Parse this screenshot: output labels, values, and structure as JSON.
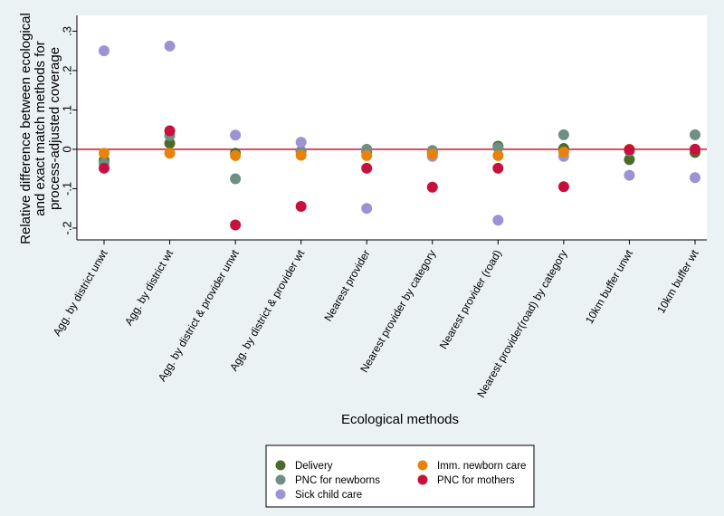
{
  "chart_data": {
    "type": "scatter",
    "xlabel": "Ecological methods",
    "ylabel_lines": [
      "Relative difference between ecological",
      "and exact match methods for",
      "process-adjusted coverage"
    ],
    "ylim": [
      -0.23,
      0.34
    ],
    "yticks": [
      -0.2,
      -0.1,
      0,
      0.1,
      0.2,
      0.3
    ],
    "ytick_labels": [
      "-.2",
      "-.1",
      "0",
      ".1",
      ".2",
      ".3"
    ],
    "reference_line": {
      "y": 0,
      "color": "#c00020"
    },
    "categories": [
      "Agg. by district unwt",
      "Agg. by district wt",
      "Agg. by district & provider unwt",
      "Agg. by district & provider wt",
      "Nearest provider",
      "Nearest provider by category",
      "Nearest provider (road)",
      "Nearest provider(road) by category",
      "10km buffer unwt",
      "10km buffer wt"
    ],
    "series": [
      {
        "name": "Delivery",
        "color": "#4b6b2a",
        "values": [
          -0.028,
          0.015,
          -0.01,
          -0.005,
          -0.006,
          -0.008,
          0.008,
          0.002,
          -0.026,
          -0.008
        ]
      },
      {
        "name": "PNC for newborns",
        "color": "#6f8e84",
        "values": [
          -0.035,
          0.035,
          -0.075,
          -0.005,
          0.0,
          -0.003,
          0.004,
          0.037,
          -0.004,
          0.037
        ]
      },
      {
        "name": "Sick child care",
        "color": "#9c93d4",
        "values": [
          0.25,
          0.262,
          0.036,
          0.018,
          -0.15,
          -0.018,
          -0.18,
          -0.018,
          -0.066,
          -0.072
        ]
      },
      {
        "name": "Imm. newborn care",
        "color": "#e8820a",
        "values": [
          -0.01,
          -0.01,
          -0.016,
          -0.015,
          -0.016,
          -0.012,
          -0.016,
          -0.007,
          0.0,
          0.0
        ]
      },
      {
        "name": "PNC for mothers",
        "color": "#c8103e",
        "values": [
          -0.048,
          0.047,
          -0.192,
          -0.145,
          -0.048,
          -0.096,
          -0.048,
          -0.095,
          -0.001,
          0.0
        ]
      }
    ],
    "legend": {
      "position": "bottom-center",
      "columns": [
        [
          "Delivery",
          "PNC for newborns",
          "Sick child care"
        ],
        [
          "Imm. newborn care",
          "PNC for mothers"
        ]
      ]
    }
  }
}
